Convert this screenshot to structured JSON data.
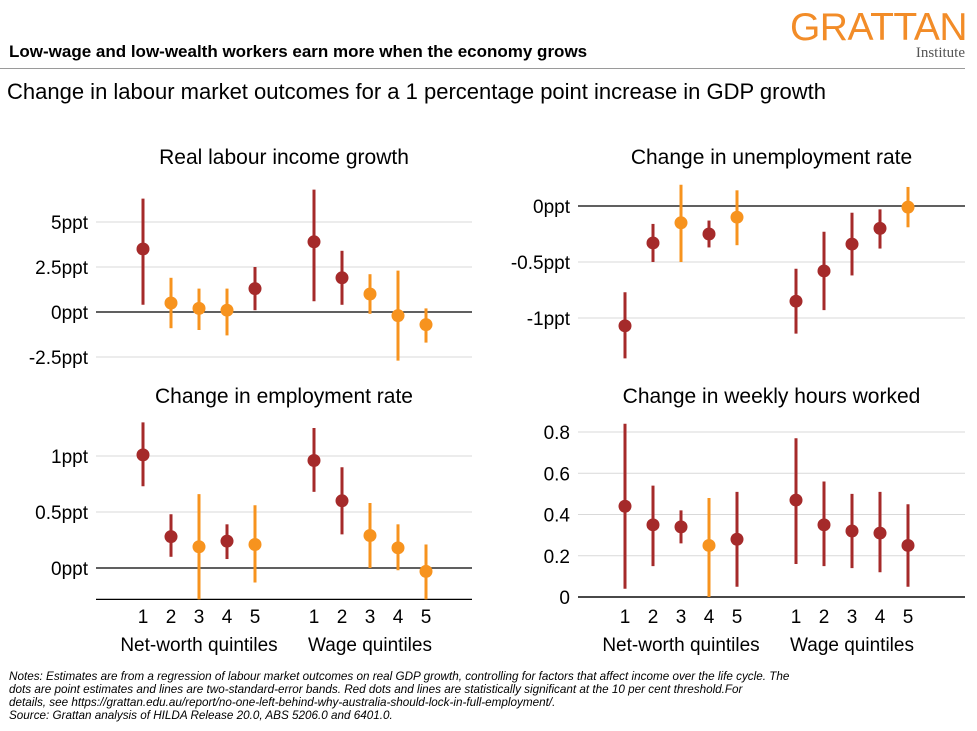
{
  "header": {
    "title": "Low-wage and low-wealth  workers earn more when the economy grows",
    "subtitle": "Change in labour market outcomes for a 1 percentage point increase in GDP growth",
    "logo_main": "GRATTAN",
    "logo_sub": "Institute"
  },
  "colors": {
    "significant": "#a52a2a",
    "not_significant": "#f7931e",
    "axis": "#000000",
    "grid": "#d9d9d9",
    "logo": "#f28c28"
  },
  "chart_data": [
    {
      "type": "scatter",
      "title": "Real labour income growth",
      "categories": [
        "1",
        "2",
        "3",
        "4",
        "5",
        "1",
        "2",
        "3",
        "4",
        "5"
      ],
      "group_labels": [
        "Net-worth quintiles",
        "Wage quintiles"
      ],
      "ylim": [
        -2.5,
        7
      ],
      "ticks": [
        5,
        2.5,
        0,
        -2.5
      ],
      "tick_labels": [
        "5ppt",
        "2.5ppt",
        "0ppt",
        "-2.5ppt"
      ],
      "points": [
        {
          "value": 3.5,
          "low": 0.4,
          "high": 6.3,
          "significant": true
        },
        {
          "value": 0.5,
          "low": -0.9,
          "high": 1.9,
          "significant": false
        },
        {
          "value": 0.2,
          "low": -1.0,
          "high": 1.3,
          "significant": false
        },
        {
          "value": 0.1,
          "low": -1.3,
          "high": 1.3,
          "significant": false
        },
        {
          "value": 1.3,
          "low": 0.1,
          "high": 2.5,
          "significant": true
        },
        {
          "value": 3.9,
          "low": 0.6,
          "high": 6.8,
          "significant": true
        },
        {
          "value": 1.9,
          "low": 0.4,
          "high": 3.4,
          "significant": true
        },
        {
          "value": 1.0,
          "low": -0.1,
          "high": 2.1,
          "significant": false
        },
        {
          "value": -0.2,
          "low": -2.7,
          "high": 2.3,
          "significant": false
        },
        {
          "value": -0.7,
          "low": -1.7,
          "high": 0.2,
          "significant": false
        }
      ]
    },
    {
      "type": "scatter",
      "title": "Change in unemployment rate",
      "categories": [
        "1",
        "2",
        "3",
        "4",
        "5",
        "1",
        "2",
        "3",
        "4",
        "5"
      ],
      "group_labels": [
        "Net-worth quintiles",
        "Wage quintiles"
      ],
      "ylim": [
        -1.3,
        0.2
      ],
      "ticks": [
        0,
        -0.5,
        -1
      ],
      "tick_labels": [
        "0ppt",
        "-0.5ppt",
        "-1ppt"
      ],
      "points": [
        {
          "value": -1.07,
          "low": -1.36,
          "high": -0.77,
          "significant": true
        },
        {
          "value": -0.33,
          "low": -0.5,
          "high": -0.16,
          "significant": true
        },
        {
          "value": -0.15,
          "low": -0.5,
          "high": 0.19,
          "significant": false
        },
        {
          "value": -0.25,
          "low": -0.37,
          "high": -0.13,
          "significant": true
        },
        {
          "value": -0.1,
          "low": -0.35,
          "high": 0.14,
          "significant": false
        },
        {
          "value": -0.85,
          "low": -1.14,
          "high": -0.56,
          "significant": true
        },
        {
          "value": -0.58,
          "low": -0.93,
          "high": -0.23,
          "significant": true
        },
        {
          "value": -0.34,
          "low": -0.62,
          "high": -0.06,
          "significant": true
        },
        {
          "value": -0.2,
          "low": -0.38,
          "high": -0.03,
          "significant": true
        },
        {
          "value": -0.01,
          "low": -0.19,
          "high": 0.17,
          "significant": false
        }
      ]
    },
    {
      "type": "scatter",
      "title": "Change in employment rate",
      "categories": [
        "1",
        "2",
        "3",
        "4",
        "5",
        "1",
        "2",
        "3",
        "4",
        "5"
      ],
      "group_labels": [
        "Net-worth quintiles",
        "Wage quintiles"
      ],
      "ylim": [
        -0.28,
        1.25
      ],
      "ticks": [
        1,
        0.5,
        0
      ],
      "tick_labels": [
        "1ppt",
        "0.5ppt",
        "0ppt"
      ],
      "points": [
        {
          "value": 1.01,
          "low": 0.73,
          "high": 1.3,
          "significant": true
        },
        {
          "value": 0.28,
          "low": 0.1,
          "high": 0.48,
          "significant": true
        },
        {
          "value": 0.19,
          "low": -0.28,
          "high": 0.66,
          "significant": false
        },
        {
          "value": 0.24,
          "low": 0.08,
          "high": 0.39,
          "significant": true
        },
        {
          "value": 0.21,
          "low": -0.13,
          "high": 0.56,
          "significant": false
        },
        {
          "value": 0.96,
          "low": 0.68,
          "high": 1.25,
          "significant": true
        },
        {
          "value": 0.6,
          "low": 0.3,
          "high": 0.9,
          "significant": true
        },
        {
          "value": 0.29,
          "low": 0.0,
          "high": 0.58,
          "significant": false
        },
        {
          "value": 0.18,
          "low": -0.02,
          "high": 0.39,
          "significant": false
        },
        {
          "value": -0.03,
          "low": -0.28,
          "high": 0.21,
          "significant": false
        }
      ]
    },
    {
      "type": "scatter",
      "title": "Change in weekly hours worked",
      "categories": [
        "1",
        "2",
        "3",
        "4",
        "5",
        "1",
        "2",
        "3",
        "4",
        "5"
      ],
      "group_labels": [
        "Net-worth quintiles",
        "Wage quintiles"
      ],
      "ylim": [
        0,
        0.8
      ],
      "ticks": [
        0.8,
        0.6,
        0.4,
        0.2,
        0
      ],
      "tick_labels": [
        "0.8",
        "0.6",
        "0.4",
        "0.2",
        "0"
      ],
      "points": [
        {
          "value": 0.44,
          "low": 0.04,
          "high": 0.84,
          "significant": true
        },
        {
          "value": 0.35,
          "low": 0.15,
          "high": 0.54,
          "significant": true
        },
        {
          "value": 0.34,
          "low": 0.26,
          "high": 0.42,
          "significant": true
        },
        {
          "value": 0.25,
          "low": 0.0,
          "high": 0.48,
          "significant": false
        },
        {
          "value": 0.28,
          "low": 0.05,
          "high": 0.51,
          "significant": true
        },
        {
          "value": 0.47,
          "low": 0.16,
          "high": 0.77,
          "significant": true
        },
        {
          "value": 0.35,
          "low": 0.15,
          "high": 0.56,
          "significant": true
        },
        {
          "value": 0.32,
          "low": 0.14,
          "high": 0.5,
          "significant": true
        },
        {
          "value": 0.31,
          "low": 0.12,
          "high": 0.51,
          "significant": true
        },
        {
          "value": 0.25,
          "low": 0.05,
          "high": 0.45,
          "significant": true
        }
      ]
    }
  ],
  "notes": {
    "line1": "Notes: Estimates are from a regression  of labour market outcomes on real GDP growth,  controlling for factors that affect income over the life cycle. The",
    "line2": "dots are point estimates and lines are two-standard-error  bands. Red dots and lines are statistically significant at the 10 per cent threshold.For",
    "line3": "details, see https://grattan.edu.au/report/no-one-left-behind-why-australia-should-lock-in-full-employment/.",
    "line4": "Source: Grattan analysis of HILDA Release  20.0, ABS 5206.0 and 6401.0."
  }
}
